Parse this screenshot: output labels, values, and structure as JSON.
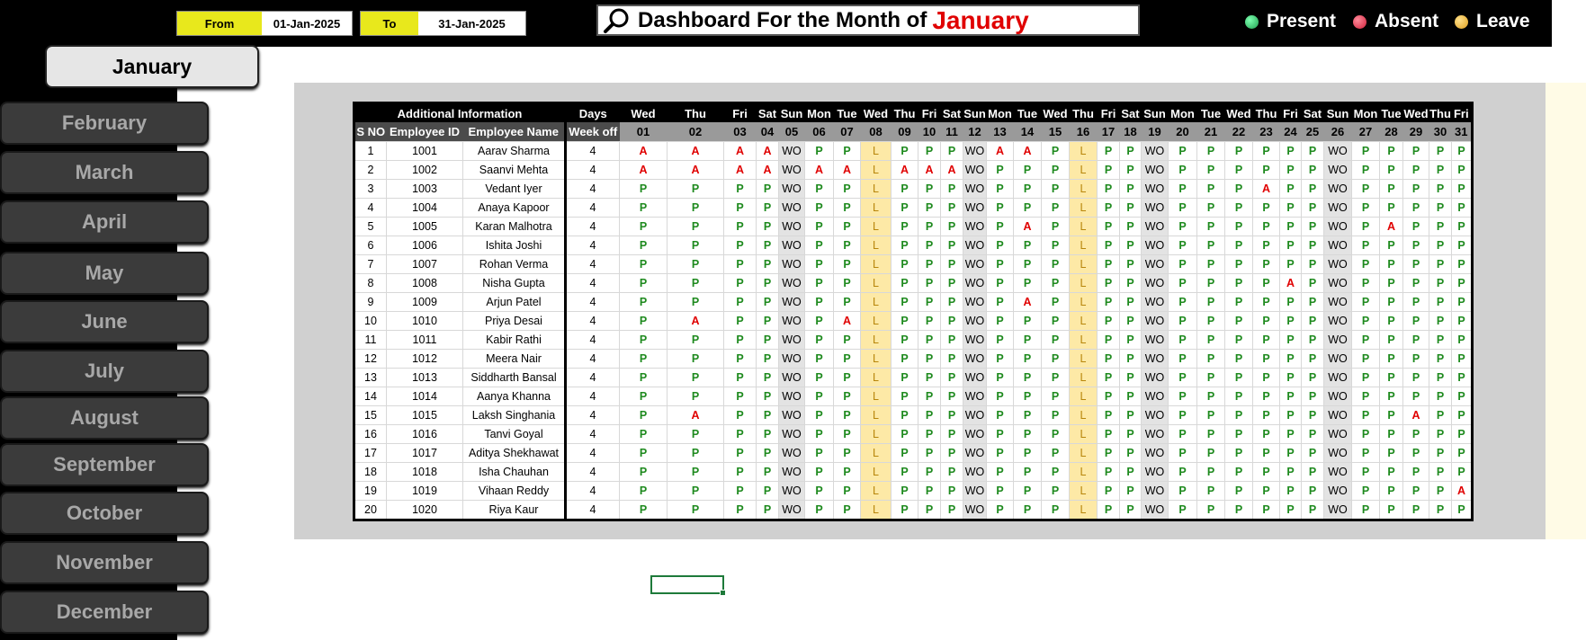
{
  "header": {
    "from_label": "From",
    "from_value": "01-Jan-2025",
    "to_label": "To",
    "to_value": "31-Jan-2025",
    "title": "Dashboard For the Month of",
    "month": "January",
    "legend": [
      {
        "label": "Present",
        "color": "#2ecc71"
      },
      {
        "label": "Absent",
        "color": "#e63950"
      },
      {
        "label": "Leave",
        "color": "#f0b840"
      }
    ]
  },
  "months": [
    "January",
    "February",
    "March",
    "April",
    "May",
    "June",
    "July",
    "August",
    "September",
    "October",
    "November",
    "December"
  ],
  "table": {
    "group_info": "Additional Information",
    "group_days": "Days",
    "headers": [
      "S NO",
      "Employee ID",
      "Employee Name",
      "Week off"
    ],
    "weekdays": [
      "Wed",
      "Thu",
      "Fri",
      "Sat",
      "Sun",
      "Mon",
      "Tue",
      "Wed",
      "Thu",
      "Fri",
      "Sat",
      "Sun",
      "Mon",
      "Tue",
      "Wed",
      "Thu",
      "Fri",
      "Sat",
      "Sun",
      "Mon",
      "Tue",
      "Wed",
      "Thu",
      "Fri",
      "Sat",
      "Sun",
      "Mon",
      "Tue",
      "Wed",
      "Thu",
      "Fri"
    ],
    "dates": [
      "01",
      "02",
      "03",
      "04",
      "05",
      "06",
      "07",
      "08",
      "09",
      "10",
      "11",
      "12",
      "13",
      "14",
      "15",
      "16",
      "17",
      "18",
      "19",
      "20",
      "21",
      "22",
      "23",
      "24",
      "25",
      "26",
      "27",
      "28",
      "29",
      "30",
      "31"
    ],
    "rows": [
      {
        "sno": "1",
        "id": "1001",
        "name": "Aarav Sharma",
        "wo": "4",
        "att": [
          "A",
          "A",
          "A",
          "A",
          "WO",
          "P",
          "P",
          "L",
          "P",
          "P",
          "P",
          "WO",
          "A",
          "A",
          "P",
          "L",
          "P",
          "P",
          "WO",
          "P",
          "P",
          "P",
          "P",
          "P",
          "P",
          "WO",
          "P",
          "P",
          "P",
          "P",
          "P"
        ]
      },
      {
        "sno": "2",
        "id": "1002",
        "name": "Saanvi Mehta",
        "wo": "4",
        "att": [
          "A",
          "A",
          "A",
          "A",
          "WO",
          "A",
          "A",
          "L",
          "A",
          "A",
          "A",
          "WO",
          "P",
          "P",
          "P",
          "L",
          "P",
          "P",
          "WO",
          "P",
          "P",
          "P",
          "P",
          "P",
          "P",
          "WO",
          "P",
          "P",
          "P",
          "P",
          "P"
        ]
      },
      {
        "sno": "3",
        "id": "1003",
        "name": "Vedant Iyer",
        "wo": "4",
        "att": [
          "P",
          "P",
          "P",
          "P",
          "WO",
          "P",
          "P",
          "L",
          "P",
          "P",
          "P",
          "WO",
          "P",
          "P",
          "P",
          "L",
          "P",
          "P",
          "WO",
          "P",
          "P",
          "P",
          "A",
          "P",
          "P",
          "WO",
          "P",
          "P",
          "P",
          "P",
          "P"
        ]
      },
      {
        "sno": "4",
        "id": "1004",
        "name": "Anaya Kapoor",
        "wo": "4",
        "att": [
          "P",
          "P",
          "P",
          "P",
          "WO",
          "P",
          "P",
          "L",
          "P",
          "P",
          "P",
          "WO",
          "P",
          "P",
          "P",
          "L",
          "P",
          "P",
          "WO",
          "P",
          "P",
          "P",
          "P",
          "P",
          "P",
          "WO",
          "P",
          "P",
          "P",
          "P",
          "P"
        ]
      },
      {
        "sno": "5",
        "id": "1005",
        "name": "Karan Malhotra",
        "wo": "4",
        "att": [
          "P",
          "P",
          "P",
          "P",
          "WO",
          "P",
          "P",
          "L",
          "P",
          "P",
          "P",
          "WO",
          "P",
          "A",
          "P",
          "L",
          "P",
          "P",
          "WO",
          "P",
          "P",
          "P",
          "P",
          "P",
          "P",
          "WO",
          "P",
          "A",
          "P",
          "P",
          "P"
        ]
      },
      {
        "sno": "6",
        "id": "1006",
        "name": "Ishita Joshi",
        "wo": "4",
        "att": [
          "P",
          "P",
          "P",
          "P",
          "WO",
          "P",
          "P",
          "L",
          "P",
          "P",
          "P",
          "WO",
          "P",
          "P",
          "P",
          "L",
          "P",
          "P",
          "WO",
          "P",
          "P",
          "P",
          "P",
          "P",
          "P",
          "WO",
          "P",
          "P",
          "P",
          "P",
          "P"
        ]
      },
      {
        "sno": "7",
        "id": "1007",
        "name": "Rohan Verma",
        "wo": "4",
        "att": [
          "P",
          "P",
          "P",
          "P",
          "WO",
          "P",
          "P",
          "L",
          "P",
          "P",
          "P",
          "WO",
          "P",
          "P",
          "P",
          "L",
          "P",
          "P",
          "WO",
          "P",
          "P",
          "P",
          "P",
          "P",
          "P",
          "WO",
          "P",
          "P",
          "P",
          "P",
          "P"
        ]
      },
      {
        "sno": "8",
        "id": "1008",
        "name": "Nisha Gupta",
        "wo": "4",
        "att": [
          "P",
          "P",
          "P",
          "P",
          "WO",
          "P",
          "P",
          "L",
          "P",
          "P",
          "P",
          "WO",
          "P",
          "P",
          "P",
          "L",
          "P",
          "P",
          "WO",
          "P",
          "P",
          "P",
          "P",
          "A",
          "P",
          "WO",
          "P",
          "P",
          "P",
          "P",
          "P"
        ]
      },
      {
        "sno": "9",
        "id": "1009",
        "name": "Arjun Patel",
        "wo": "4",
        "att": [
          "P",
          "P",
          "P",
          "P",
          "WO",
          "P",
          "P",
          "L",
          "P",
          "P",
          "P",
          "WO",
          "P",
          "A",
          "P",
          "L",
          "P",
          "P",
          "WO",
          "P",
          "P",
          "P",
          "P",
          "P",
          "P",
          "WO",
          "P",
          "P",
          "P",
          "P",
          "P"
        ]
      },
      {
        "sno": "10",
        "id": "1010",
        "name": "Priya Desai",
        "wo": "4",
        "att": [
          "P",
          "A",
          "P",
          "P",
          "WO",
          "P",
          "A",
          "L",
          "P",
          "P",
          "P",
          "WO",
          "P",
          "P",
          "P",
          "L",
          "P",
          "P",
          "WO",
          "P",
          "P",
          "P",
          "P",
          "P",
          "P",
          "WO",
          "P",
          "P",
          "P",
          "P",
          "P"
        ]
      },
      {
        "sno": "11",
        "id": "1011",
        "name": "Kabir Rathi",
        "wo": "4",
        "att": [
          "P",
          "P",
          "P",
          "P",
          "WO",
          "P",
          "P",
          "L",
          "P",
          "P",
          "P",
          "WO",
          "P",
          "P",
          "P",
          "L",
          "P",
          "P",
          "WO",
          "P",
          "P",
          "P",
          "P",
          "P",
          "P",
          "WO",
          "P",
          "P",
          "P",
          "P",
          "P"
        ]
      },
      {
        "sno": "12",
        "id": "1012",
        "name": "Meera Nair",
        "wo": "4",
        "att": [
          "P",
          "P",
          "P",
          "P",
          "WO",
          "P",
          "P",
          "L",
          "P",
          "P",
          "P",
          "WO",
          "P",
          "P",
          "P",
          "L",
          "P",
          "P",
          "WO",
          "P",
          "P",
          "P",
          "P",
          "P",
          "P",
          "WO",
          "P",
          "P",
          "P",
          "P",
          "P"
        ]
      },
      {
        "sno": "13",
        "id": "1013",
        "name": "Siddharth Bansal",
        "wo": "4",
        "att": [
          "P",
          "P",
          "P",
          "P",
          "WO",
          "P",
          "P",
          "L",
          "P",
          "P",
          "P",
          "WO",
          "P",
          "P",
          "P",
          "L",
          "P",
          "P",
          "WO",
          "P",
          "P",
          "P",
          "P",
          "P",
          "P",
          "WO",
          "P",
          "P",
          "P",
          "P",
          "P"
        ]
      },
      {
        "sno": "14",
        "id": "1014",
        "name": "Aanya Khanna",
        "wo": "4",
        "att": [
          "P",
          "P",
          "P",
          "P",
          "WO",
          "P",
          "P",
          "L",
          "P",
          "P",
          "P",
          "WO",
          "P",
          "P",
          "P",
          "L",
          "P",
          "P",
          "WO",
          "P",
          "P",
          "P",
          "P",
          "P",
          "P",
          "WO",
          "P",
          "P",
          "P",
          "P",
          "P"
        ]
      },
      {
        "sno": "15",
        "id": "1015",
        "name": "Laksh Singhania",
        "wo": "4",
        "att": [
          "P",
          "A",
          "P",
          "P",
          "WO",
          "P",
          "P",
          "L",
          "P",
          "P",
          "P",
          "WO",
          "P",
          "P",
          "P",
          "L",
          "P",
          "P",
          "WO",
          "P",
          "P",
          "P",
          "P",
          "P",
          "P",
          "WO",
          "P",
          "P",
          "A",
          "P",
          "P"
        ]
      },
      {
        "sno": "16",
        "id": "1016",
        "name": "Tanvi Goyal",
        "wo": "4",
        "att": [
          "P",
          "P",
          "P",
          "P",
          "WO",
          "P",
          "P",
          "L",
          "P",
          "P",
          "P",
          "WO",
          "P",
          "P",
          "P",
          "L",
          "P",
          "P",
          "WO",
          "P",
          "P",
          "P",
          "P",
          "P",
          "P",
          "WO",
          "P",
          "P",
          "P",
          "P",
          "P"
        ]
      },
      {
        "sno": "17",
        "id": "1017",
        "name": "Aditya Shekhawat",
        "wo": "4",
        "att": [
          "P",
          "P",
          "P",
          "P",
          "WO",
          "P",
          "P",
          "L",
          "P",
          "P",
          "P",
          "WO",
          "P",
          "P",
          "P",
          "L",
          "P",
          "P",
          "WO",
          "P",
          "P",
          "P",
          "P",
          "P",
          "P",
          "WO",
          "P",
          "P",
          "P",
          "P",
          "P"
        ]
      },
      {
        "sno": "18",
        "id": "1018",
        "name": "Isha Chauhan",
        "wo": "4",
        "att": [
          "P",
          "P",
          "P",
          "P",
          "WO",
          "P",
          "P",
          "L",
          "P",
          "P",
          "P",
          "WO",
          "P",
          "P",
          "P",
          "L",
          "P",
          "P",
          "WO",
          "P",
          "P",
          "P",
          "P",
          "P",
          "P",
          "WO",
          "P",
          "P",
          "P",
          "P",
          "P"
        ]
      },
      {
        "sno": "19",
        "id": "1019",
        "name": "Vihaan Reddy",
        "wo": "4",
        "att": [
          "P",
          "P",
          "P",
          "P",
          "WO",
          "P",
          "P",
          "L",
          "P",
          "P",
          "P",
          "WO",
          "P",
          "P",
          "P",
          "L",
          "P",
          "P",
          "WO",
          "P",
          "P",
          "P",
          "P",
          "P",
          "P",
          "WO",
          "P",
          "P",
          "P",
          "P",
          "A"
        ]
      },
      {
        "sno": "20",
        "id": "1020",
        "name": "Riya Kaur",
        "wo": "4",
        "att": [
          "P",
          "P",
          "P",
          "P",
          "WO",
          "P",
          "P",
          "L",
          "P",
          "P",
          "P",
          "WO",
          "P",
          "P",
          "P",
          "L",
          "P",
          "P",
          "WO",
          "P",
          "P",
          "P",
          "P",
          "P",
          "P",
          "WO",
          "P",
          "P",
          "P",
          "P",
          "P"
        ]
      }
    ]
  }
}
